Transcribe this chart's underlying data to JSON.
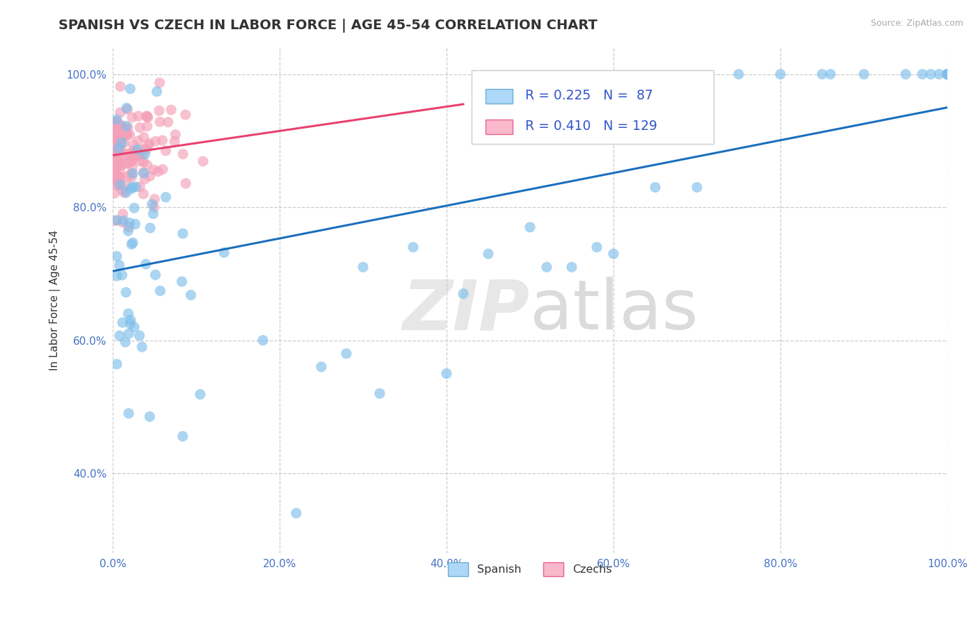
{
  "title": "SPANISH VS CZECH IN LABOR FORCE | AGE 45-54 CORRELATION CHART",
  "source_text": "Source: ZipAtlas.com",
  "ylabel": "In Labor Force | Age 45-54",
  "xlim": [
    0.0,
    1.0
  ],
  "ylim": [
    0.28,
    1.04
  ],
  "xticks": [
    0.0,
    0.2,
    0.4,
    0.6,
    0.8,
    1.0
  ],
  "yticks": [
    0.4,
    0.6,
    0.8,
    1.0
  ],
  "spanish_color": "#7fbfea",
  "czech_color": "#f4a0b8",
  "spanish_line_color": "#1a6fbd",
  "czech_line_color": "#e8416e",
  "spanish_R": 0.225,
  "spanish_N": 87,
  "czech_R": 0.41,
  "czech_N": 129,
  "background_color": "#ffffff",
  "title_fontsize": 14,
  "axis_fontsize": 11,
  "tick_fontsize": 11,
  "tick_color": "#4472c4",
  "watermark_color": "#d0d0d0",
  "watermark_alpha": 0.5,
  "legend_facecolor": "#f8f8f8",
  "legend_edgecolor": "#cccccc"
}
